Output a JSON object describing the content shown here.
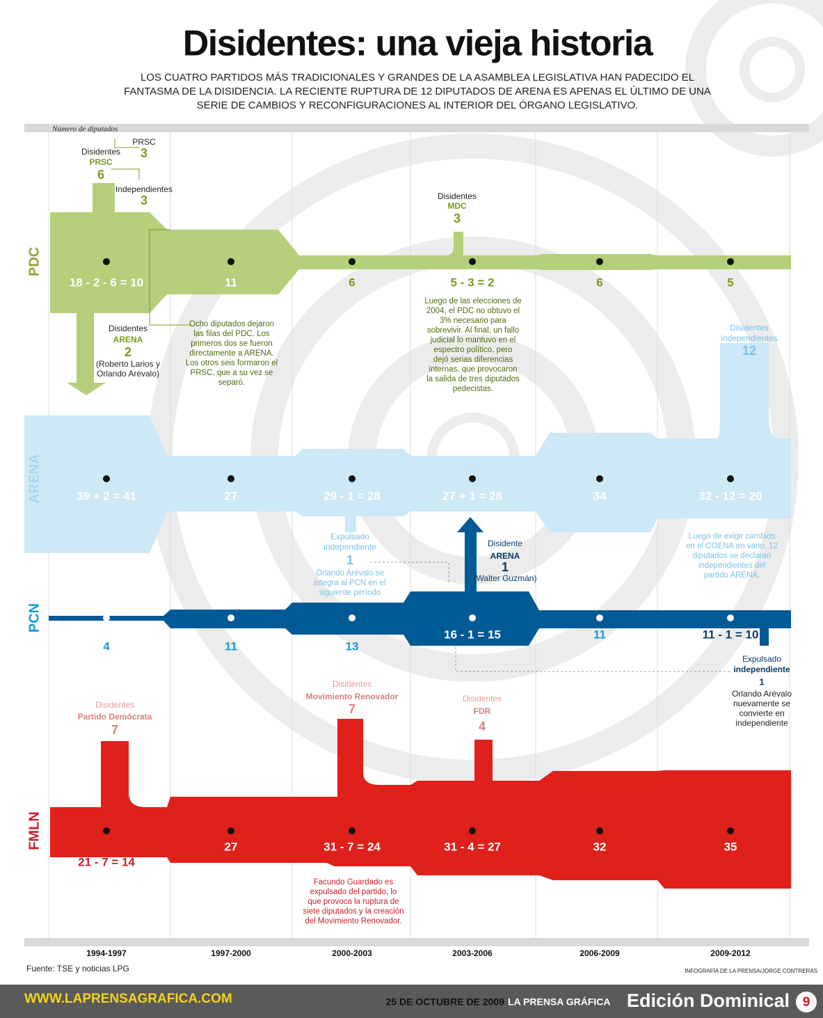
{
  "header": {
    "title": "Disidentes: una vieja historia",
    "subtitle": [
      "LOS CUATRO PARTIDOS MÁS TRADICIONALES  Y GRANDES DE LA ASAMBLEA LEGISLATIVA HAN PADECIDO EL",
      "FANTASMA DE LA DISIDENCIA. LA RECIENTE RUPTURA DE 12 DIPUTADOS DE ARENA ES APENAS EL ÚLTIMO DE UNA",
      "SERIE DE CAMBIOS Y RECONFIGURACIONES AL INTERIOR DEL ÓRGANO LEGISLATIVO."
    ]
  },
  "axis_label": "Número de diputados",
  "periods": [
    "1994-1997",
    "1997-2000",
    "2000-2003",
    "2003-2006",
    "2006-2009",
    "2009-2012"
  ],
  "parties": [
    {
      "name": "PDC",
      "counts": [
        "18 - 2 - 6 = 10",
        "11",
        "6",
        "5 - 3 = 2",
        "6",
        "5"
      ]
    },
    {
      "name": "ARENA",
      "counts": [
        "39 + 2 = 41",
        "27",
        "29 - 1 = 28",
        "27 + 1 = 28",
        "34",
        "32 - 12 = 20"
      ]
    },
    {
      "name": "PCN",
      "counts": [
        "4",
        "11",
        "13",
        "16 - 1 = 15",
        "11",
        "11 - 1 = 10"
      ]
    },
    {
      "name": "FMLN",
      "counts": [
        "21 - 7 = 14",
        "27",
        "31 - 7 = 24",
        "31 - 4 = 27",
        "32",
        "35"
      ]
    }
  ],
  "annotations": [
    [
      "Disidentes",
      "PRSC",
      "6"
    ],
    [
      "PRSC",
      "3"
    ],
    [
      "Independientes",
      "3"
    ],
    [
      "Disidentes",
      "ARENA",
      "2",
      "(Roberto Larios y",
      "Orlando Arévalo)"
    ],
    [
      "Ocho  diputados dejaron",
      "las filas del PDC. Los",
      "primeros dos se fueron",
      "directamente a ARENA.",
      "Los otros seis formaron el",
      "PRSC, que a su vez se",
      "separó."
    ],
    [
      "Disidentes",
      "MDC",
      "3"
    ],
    [
      "Luego de las elecciones de",
      "2004, el PDC no obtuvo el",
      "3% necesario para",
      "sobrevivir. Al final, un fallo",
      "judicial lo mantuvo en el",
      "espectro político, pero",
      "dejó serias diferencias",
      "internas, que provocaron",
      "la salida de tres diputados",
      "pedecistas."
    ],
    [
      "Disidentes",
      "independientes",
      "12"
    ],
    [
      "Expulsado",
      "independiente",
      "1",
      "Orlando Arévalo se",
      "integra al PCN en el",
      "siguiente período"
    ],
    [
      "Disidente",
      "ARENA",
      "1",
      "(Walter Guzmán)"
    ],
    [
      "Luego de exigir cambios",
      "en el COENA en vano, 12",
      "diputados se declaran",
      "independientes del",
      "partido ARENA."
    ],
    [
      "Expulsado",
      "independiente",
      "1",
      "Orlando Arévalo",
      "nuevamente se",
      "convierte en",
      "independiente"
    ],
    [
      "Disidentes",
      "Partido Demócrata",
      "7"
    ],
    [
      "Disidentes",
      "Movimiento Renovador",
      "7"
    ],
    [
      "Disidentes",
      "FDR",
      "4"
    ],
    [
      "Facundo Guardado es",
      "expulsado del partido, lo",
      "que provoca la ruptura de",
      "siete diputados y la creación",
      "del Movimiento Renovador."
    ]
  ],
  "source": "Fuente: TSE y noticias LPG",
  "credit": "INFOGRAFÍA DE LA PRENSA/JORGE CONTRERAS",
  "footer": {
    "url": "WWW.LAPRENSAGRAFICA.COM",
    "date": "25 DE OCTUBRE DE 2009",
    "paper": "LA PRENSA GRÁFICA",
    "edition": "Edición Dominical",
    "page": 9
  }
}
